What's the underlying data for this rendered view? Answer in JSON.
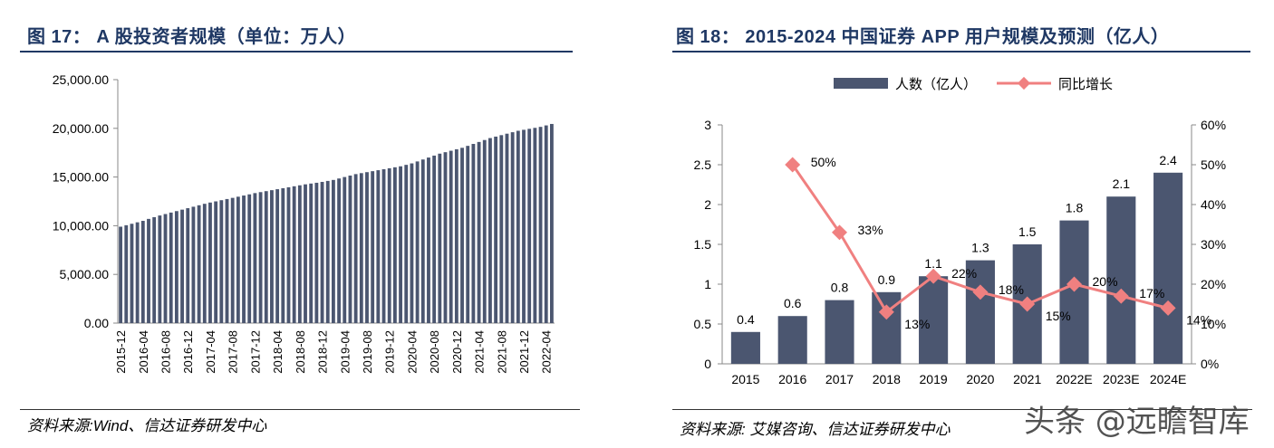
{
  "left_figure": {
    "title": "图 17： A 股投资者规模（单位：万人）",
    "source": "资料来源:Wind、信达证券研发中心"
  },
  "right_figure": {
    "title": "图 18： 2015-2024 中国证券 APP 用户规模及预测（亿人）",
    "source": "资料来源: 艾媒咨询、信达证券研发中心"
  },
  "watermark": "头条 @远瞻智库",
  "colors": {
    "bar": "#4b5670",
    "line": "#f08080",
    "title": "#1f3864"
  },
  "chart_data": [
    {
      "type": "bar",
      "title": "A 股投资者规模（单位：万人）",
      "ylim": [
        0,
        25000
      ],
      "yticks": [
        "0.00",
        "5,000.00",
        "10,000.00",
        "15,000.00",
        "20,000.00",
        "25,000.00"
      ],
      "xtick_labels": [
        "2015-12",
        "2016-04",
        "2016-08",
        "2016-12",
        "2017-04",
        "2017-08",
        "2017-12",
        "2018-04",
        "2018-08",
        "2018-12",
        "2019-04",
        "2019-08",
        "2019-12",
        "2020-04",
        "2020-08",
        "2020-12",
        "2021-04",
        "2021-08",
        "2021-12",
        "2022-04"
      ],
      "categories": [
        "2015-12",
        "2016-01",
        "2016-02",
        "2016-03",
        "2016-04",
        "2016-05",
        "2016-06",
        "2016-07",
        "2016-08",
        "2016-09",
        "2016-10",
        "2016-11",
        "2016-12",
        "2017-01",
        "2017-02",
        "2017-03",
        "2017-04",
        "2017-05",
        "2017-06",
        "2017-07",
        "2017-08",
        "2017-09",
        "2017-10",
        "2017-11",
        "2017-12",
        "2018-01",
        "2018-02",
        "2018-03",
        "2018-04",
        "2018-05",
        "2018-06",
        "2018-07",
        "2018-08",
        "2018-09",
        "2018-10",
        "2018-11",
        "2018-12",
        "2019-01",
        "2019-02",
        "2019-03",
        "2019-04",
        "2019-05",
        "2019-06",
        "2019-07",
        "2019-08",
        "2019-09",
        "2019-10",
        "2019-11",
        "2019-12",
        "2020-01",
        "2020-02",
        "2020-03",
        "2020-04",
        "2020-05",
        "2020-06",
        "2020-07",
        "2020-08",
        "2020-09",
        "2020-10",
        "2020-11",
        "2020-12",
        "2021-01",
        "2021-02",
        "2021-03",
        "2021-04",
        "2021-05",
        "2021-06",
        "2021-07",
        "2021-08",
        "2021-09",
        "2021-10",
        "2021-11",
        "2021-12",
        "2022-01",
        "2022-02",
        "2022-03",
        "2022-04",
        "2022-05"
      ],
      "values": [
        9900,
        10050,
        10200,
        10350,
        10500,
        10700,
        10880,
        11050,
        11200,
        11350,
        11500,
        11650,
        11800,
        11950,
        12100,
        12250,
        12380,
        12500,
        12620,
        12740,
        12860,
        12980,
        13100,
        13220,
        13350,
        13450,
        13550,
        13650,
        13750,
        13850,
        13950,
        14050,
        14150,
        14250,
        14330,
        14410,
        14500,
        14600,
        14700,
        14850,
        15000,
        15150,
        15300,
        15400,
        15500,
        15600,
        15700,
        15800,
        15900,
        16000,
        16100,
        16250,
        16400,
        16600,
        16800,
        17000,
        17200,
        17400,
        17550,
        17700,
        17850,
        18000,
        18200,
        18400,
        18600,
        18800,
        19000,
        19150,
        19300,
        19450,
        19600,
        19750,
        19850,
        19950,
        20050,
        20150,
        20300,
        20450
      ]
    },
    {
      "type": "bar+line",
      "title": "2015-2024 中国证券 APP 用户规模及预测（亿人）",
      "categories": [
        "2015",
        "2016",
        "2017",
        "2018",
        "2019",
        "2020",
        "2021",
        "2022E",
        "2023E",
        "2024E"
      ],
      "series": [
        {
          "name": "人数（亿人）",
          "type": "bar",
          "axis": "left",
          "values": [
            0.4,
            0.6,
            0.8,
            0.9,
            1.1,
            1.3,
            1.5,
            1.8,
            2.1,
            2.4
          ],
          "labels": [
            "0.4",
            "0.6",
            "0.8",
            "0.9",
            "1.1",
            "1.3",
            "1.5",
            "1.8",
            "2.1",
            "2.4"
          ]
        },
        {
          "name": "同比增长",
          "type": "line",
          "axis": "right",
          "values": [
            null,
            50,
            33,
            13,
            22,
            18,
            15,
            20,
            17,
            14
          ],
          "labels": [
            "",
            "50%",
            "33%",
            "13%",
            "22%",
            "18%",
            "15%",
            "20%",
            "17%",
            "14%"
          ]
        }
      ],
      "ylim_left": [
        0,
        3
      ],
      "ylim_right": [
        0,
        60
      ],
      "yticks_left": [
        "0",
        "0.5",
        "1",
        "1.5",
        "2",
        "2.5",
        "3"
      ],
      "yticks_right": [
        "0%",
        "10%",
        "20%",
        "30%",
        "40%",
        "50%",
        "60%"
      ]
    }
  ]
}
